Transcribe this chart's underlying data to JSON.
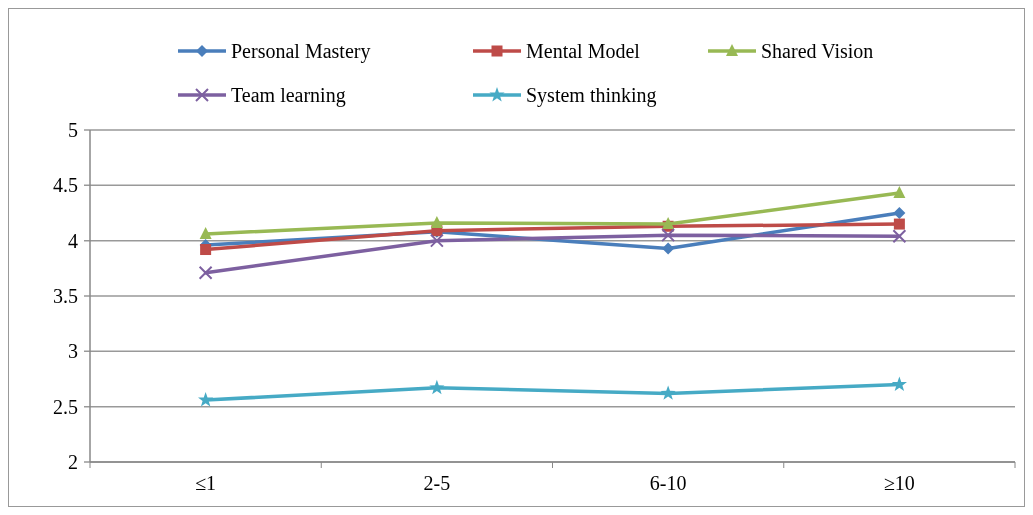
{
  "chart_data": {
    "type": "line",
    "categories": [
      "≤1",
      "2-5",
      "6-10",
      "≥10"
    ],
    "series": [
      {
        "name": "Personal Mastery",
        "color": "#4a7ebb",
        "marker": "diamond",
        "values": [
          3.96,
          4.08,
          3.93,
          4.25
        ]
      },
      {
        "name": "Mental Model",
        "color": "#be4b48",
        "marker": "square",
        "values": [
          3.92,
          4.09,
          4.13,
          4.15
        ]
      },
      {
        "name": "Shared Vision",
        "color": "#98b954",
        "marker": "triangle",
        "values": [
          4.06,
          4.16,
          4.15,
          4.43
        ]
      },
      {
        "name": "Team learning",
        "color": "#7d60a0",
        "marker": "cross",
        "values": [
          3.71,
          4.0,
          4.05,
          4.04
        ]
      },
      {
        "name": "System thinking",
        "color": "#46aac5",
        "marker": "star",
        "values": [
          2.56,
          2.67,
          2.62,
          2.7
        ]
      }
    ],
    "ylim": [
      2,
      5
    ],
    "yticks": [
      2,
      {
        "value": 2.5,
        "label": "2.5"
      },
      3,
      {
        "value": 3.5,
        "label": "3.5"
      },
      4,
      {
        "value": 4.5,
        "label": "4.5"
      },
      5
    ],
    "grid": "y",
    "legend": "top",
    "line_style": "solid"
  }
}
